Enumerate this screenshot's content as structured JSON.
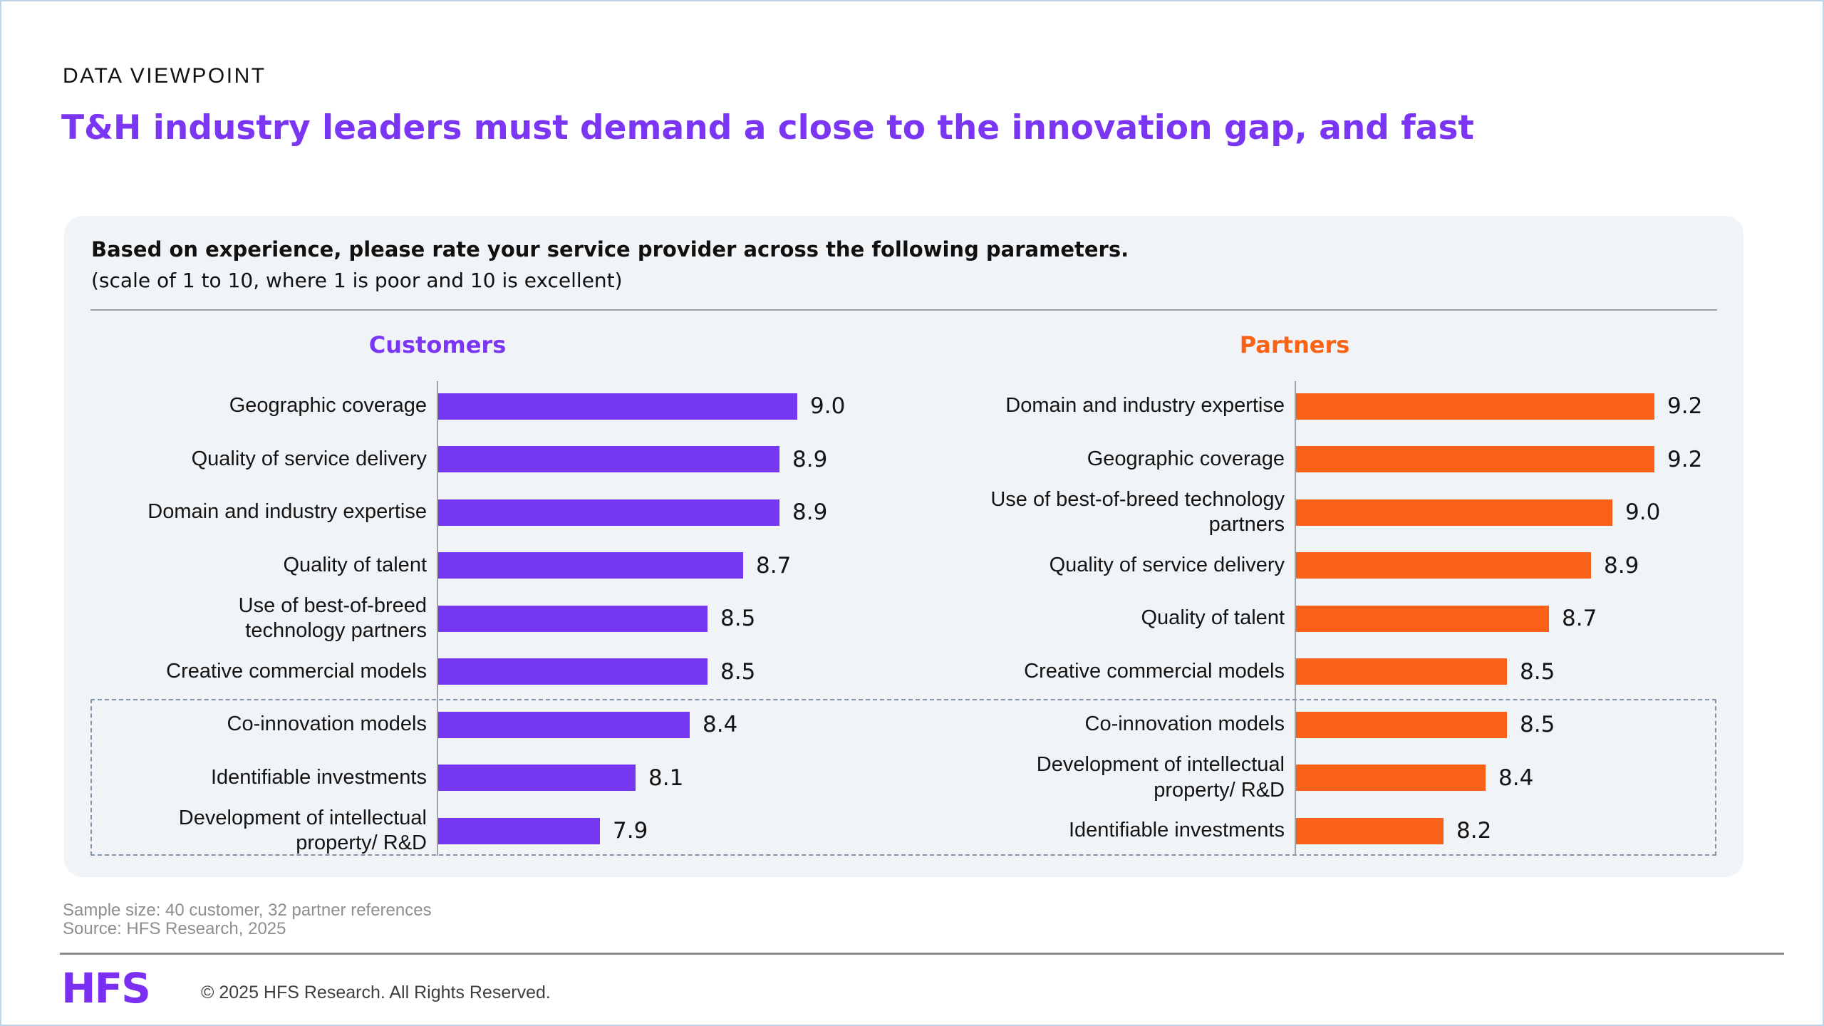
{
  "page": {
    "eyebrow": "DATA VIEWPOINT",
    "title": "T&H industry leaders must demand a close to the innovation gap, and fast"
  },
  "question": {
    "text": "Based on experience, please rate your service provider across the following parameters.",
    "scale_note": "(scale of 1 to 10, where 1 is poor and 10 is excellent)"
  },
  "chart_data": [
    {
      "type": "bar",
      "orientation": "horizontal",
      "title": "Customers",
      "bar_color": "#7537ef",
      "title_color": "#7a36f2",
      "value_format": "one_decimal",
      "value_axis_min_inferred": 7.0,
      "value_axis_max_inferred": 10.0,
      "grid": false,
      "legend": false,
      "categories": [
        "Geographic coverage",
        "Quality of service delivery",
        "Domain and industry expertise",
        "Quality of talent",
        "Use of best-of-breed\ntechnology partners",
        "Creative commercial models",
        "Co-innovation models",
        "Identifiable investments",
        "Development of intellectual\nproperty/ R&D"
      ],
      "values": [
        9.0,
        8.9,
        8.9,
        8.7,
        8.5,
        8.5,
        8.4,
        8.1,
        7.9
      ],
      "highlighted_rows": [
        6,
        7,
        8
      ]
    },
    {
      "type": "bar",
      "orientation": "horizontal",
      "title": "Partners",
      "bar_color": "#fa6118",
      "title_color": "#f96316",
      "value_format": "one_decimal",
      "value_axis_min_inferred": 7.5,
      "value_axis_max_inferred": 10.0,
      "grid": false,
      "legend": false,
      "categories": [
        "Domain and industry expertise",
        "Geographic coverage",
        "Use of best-of-breed technology\npartners",
        "Quality of service delivery",
        "Quality of talent",
        "Creative commercial models",
        "Co-innovation models",
        "Development of intellectual\nproperty/ R&D",
        "Identifiable investments"
      ],
      "values": [
        9.2,
        9.2,
        9.0,
        8.9,
        8.7,
        8.5,
        8.5,
        8.4,
        8.2
      ],
      "highlighted_rows": [
        6,
        7,
        8
      ]
    }
  ],
  "footer": {
    "sample_size_note": "Sample size: 40 customer, 32 partner references",
    "source_note": "Source: HFS Research, 2025",
    "logo_text": "HFS",
    "copyright": "© 2025 HFS Research. All Rights Reserved."
  },
  "colors": {
    "brand_purple": "#7537ef",
    "brand_orange": "#fa6118",
    "panel_background": "#f1f4f7",
    "highlight_box_dash": "#8093ab",
    "axis_gray": "#a0a4a9",
    "note_gray": "#8e8e8e",
    "page_border_blue": "#bed3e6"
  }
}
